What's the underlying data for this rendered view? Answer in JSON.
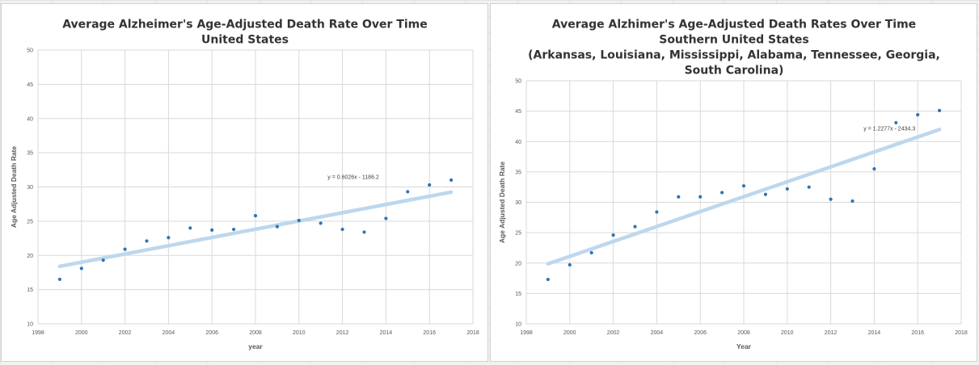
{
  "chart_data": [
    {
      "type": "scatter",
      "title_lines": [
        "Average Alzheimer's Age-Adjusted Death Rate Over Time",
        "United States"
      ],
      "xlabel": "year",
      "ylabel": "Age Adjusted Death Rate",
      "xlim": [
        1998,
        2018
      ],
      "ylim": [
        10,
        50
      ],
      "x_ticks": [
        1998,
        2000,
        2002,
        2004,
        2006,
        2008,
        2010,
        2012,
        2014,
        2016,
        2018
      ],
      "y_ticks": [
        10,
        15,
        20,
        25,
        30,
        35,
        40,
        45,
        50
      ],
      "grid": true,
      "point_color": "#2e75b6",
      "trend_color": "#bdd7ee",
      "x": [
        1999,
        2000,
        2001,
        2002,
        2003,
        2004,
        2005,
        2006,
        2007,
        2008,
        2009,
        2010,
        2011,
        2012,
        2013,
        2014,
        2015,
        2016,
        2017
      ],
      "y": [
        16.5,
        18.1,
        19.3,
        20.9,
        22.1,
        22.6,
        24.0,
        23.7,
        23.8,
        25.8,
        24.2,
        25.1,
        24.7,
        23.8,
        23.4,
        25.4,
        29.3,
        30.3,
        31.0
      ],
      "trendline": {
        "slope": 0.6026,
        "intercept": -1186.2,
        "equation": "y = 0.6026x - 1186.2",
        "equation_anchor": [
          2012.5,
          31.2
        ]
      }
    },
    {
      "type": "scatter",
      "title_lines": [
        "Average Alzhimer's Age-Adjusted Death Rates Over Time",
        "Southern United States",
        "(Arkansas, Louisiana, Mississippi, Alabama, Tennessee, Georgia,",
        "South Carolina)"
      ],
      "xlabel": "Year",
      "ylabel": "Age Adjusted Death Rate",
      "xlim": [
        1998,
        2018
      ],
      "ylim": [
        10,
        50
      ],
      "x_ticks": [
        1998,
        2000,
        2002,
        2004,
        2006,
        2008,
        2010,
        2012,
        2014,
        2016,
        2018
      ],
      "y_ticks": [
        10,
        15,
        20,
        25,
        30,
        35,
        40,
        45,
        50
      ],
      "grid": true,
      "point_color": "#2e75b6",
      "trend_color": "#bdd7ee",
      "x": [
        1999,
        2000,
        2001,
        2002,
        2003,
        2004,
        2005,
        2006,
        2007,
        2008,
        2009,
        2010,
        2011,
        2012,
        2013,
        2014,
        2015,
        2016,
        2017
      ],
      "y": [
        17.3,
        19.7,
        21.7,
        24.6,
        26.0,
        28.4,
        30.9,
        30.9,
        31.6,
        32.7,
        31.3,
        32.2,
        32.5,
        30.5,
        30.2,
        35.5,
        43.1,
        44.4,
        45.1
      ],
      "trendline": {
        "slope": 1.2277,
        "intercept": -2434.3,
        "equation": "y = 1.2277x - 2434.3",
        "equation_anchor": [
          2014.7,
          41.8
        ]
      }
    }
  ]
}
